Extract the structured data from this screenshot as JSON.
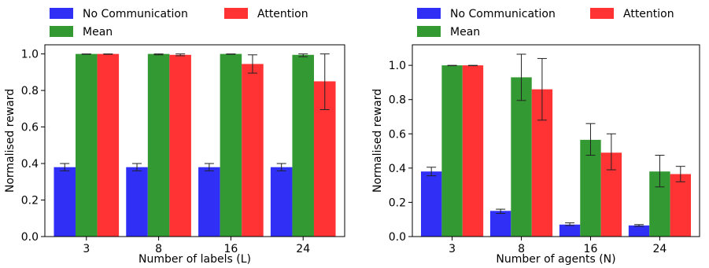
{
  "chart_data": [
    {
      "type": "bar",
      "categories": [
        "3",
        "8",
        "16",
        "24"
      ],
      "xlabel": "Number of labels (L)",
      "ylabel": "Normalised reward",
      "ylim": [
        0,
        1.05
      ],
      "yticks": [
        0.0,
        0.2,
        0.4,
        0.6,
        0.8,
        1.0
      ],
      "ytick_labels": [
        "0.0",
        "0.2",
        "0.4",
        "0.6",
        "0.8",
        "1.0"
      ],
      "legend_position": "top",
      "series": [
        {
          "name": "No Communication",
          "color": "#2f2ff5",
          "values": [
            0.38,
            0.38,
            0.38,
            0.38
          ],
          "err_low": [
            0.36,
            0.36,
            0.36,
            0.36
          ],
          "err_high": [
            0.4,
            0.4,
            0.4,
            0.4
          ]
        },
        {
          "name": "Mean",
          "color": "#339933",
          "values": [
            1.0,
            1.0,
            1.0,
            0.995
          ],
          "err_low": [
            0.998,
            0.995,
            0.998,
            0.985
          ],
          "err_high": [
            1.0,
            1.0,
            1.0,
            1.0
          ]
        },
        {
          "name": "Attention",
          "color": "#ff3333",
          "values": [
            1.0,
            0.995,
            0.945,
            0.85
          ],
          "err_low": [
            0.998,
            0.99,
            0.895,
            0.695
          ],
          "err_high": [
            1.0,
            1.0,
            0.995,
            1.0
          ]
        }
      ]
    },
    {
      "type": "bar",
      "categories": [
        "3",
        "8",
        "16",
        "24"
      ],
      "xlabel": "Number of agents (N)",
      "ylabel": "Normalised reward",
      "ylim": [
        0,
        1.12
      ],
      "yticks": [
        0.0,
        0.2,
        0.4,
        0.6,
        0.8,
        1.0
      ],
      "ytick_labels": [
        "0.0",
        "0.2",
        "0.4",
        "0.6",
        "0.8",
        "1.0"
      ],
      "legend_position": "top",
      "series": [
        {
          "name": "No Communication",
          "color": "#2f2ff5",
          "values": [
            0.38,
            0.15,
            0.07,
            0.065
          ],
          "err_low": [
            0.355,
            0.135,
            0.065,
            0.06
          ],
          "err_high": [
            0.405,
            0.16,
            0.08,
            0.07
          ]
        },
        {
          "name": "Mean",
          "color": "#339933",
          "values": [
            1.0,
            0.93,
            0.565,
            0.38
          ],
          "err_low": [
            0.998,
            0.795,
            0.475,
            0.29
          ],
          "err_high": [
            1.0,
            1.065,
            0.66,
            0.475
          ]
        },
        {
          "name": "Attention",
          "color": "#ff3333",
          "values": [
            1.0,
            0.86,
            0.49,
            0.365
          ],
          "err_low": [
            0.998,
            0.68,
            0.39,
            0.32
          ],
          "err_high": [
            1.0,
            1.04,
            0.6,
            0.41
          ]
        }
      ]
    }
  ]
}
